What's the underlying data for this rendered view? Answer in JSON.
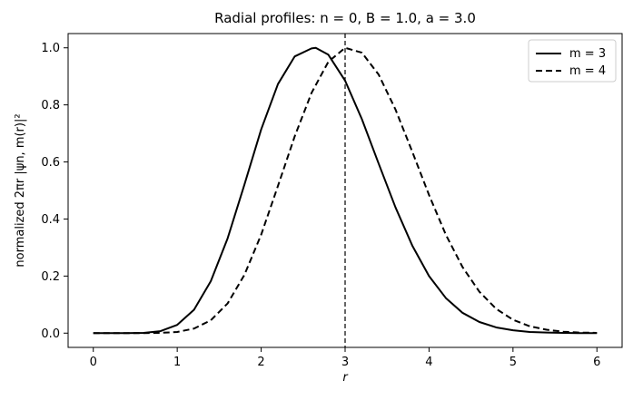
{
  "chart_data": {
    "type": "line",
    "title": "Radial profiles: n = 0, B = 1.0, a = 3.0",
    "xlabel": "r",
    "ylabel": "normalized 2πr |ψn, m(r)|²",
    "xlim": [
      -0.3,
      6.3
    ],
    "ylim": [
      -0.05,
      1.05
    ],
    "xticks": [
      0,
      1,
      2,
      3,
      4,
      5,
      6
    ],
    "yticks": [
      0.0,
      0.2,
      0.4,
      0.6,
      0.8,
      1.0
    ],
    "xtick_labels": [
      "0",
      "1",
      "2",
      "3",
      "4",
      "5",
      "6"
    ],
    "ytick_labels": [
      "0.0",
      "0.2",
      "0.4",
      "0.6",
      "0.8",
      "1.0"
    ],
    "legend_position": "top-right",
    "vline": {
      "x": 3.0,
      "style": "dashed"
    },
    "series": [
      {
        "name": "m = 3",
        "style": "solid",
        "x": [
          0.0,
          0.2,
          0.4,
          0.6,
          0.8,
          1.0,
          1.2,
          1.4,
          1.6,
          1.8,
          2.0,
          2.2,
          2.4,
          2.6,
          2.65,
          2.8,
          3.0,
          3.2,
          3.4,
          3.6,
          3.8,
          4.0,
          4.2,
          4.4,
          4.6,
          4.8,
          5.0,
          5.2,
          5.4,
          5.6,
          5.8,
          6.0
        ],
        "y": [
          0.0,
          0.0,
          0.0,
          0.001,
          0.007,
          0.029,
          0.082,
          0.182,
          0.332,
          0.52,
          0.714,
          0.873,
          0.97,
          0.998,
          1.0,
          0.976,
          0.885,
          0.75,
          0.594,
          0.441,
          0.307,
          0.2,
          0.123,
          0.071,
          0.039,
          0.02,
          0.01,
          0.004,
          0.002,
          0.001,
          0.0,
          0.0
        ]
      },
      {
        "name": "m = 4",
        "style": "dashed",
        "x": [
          0.0,
          0.2,
          0.4,
          0.6,
          0.8,
          1.0,
          1.2,
          1.4,
          1.6,
          1.8,
          2.0,
          2.2,
          2.4,
          2.6,
          2.8,
          3.0,
          3.2,
          3.4,
          3.6,
          3.8,
          4.0,
          4.2,
          4.4,
          4.6,
          4.8,
          5.0,
          5.2,
          5.4,
          5.6,
          5.8,
          6.0
        ],
        "y": [
          0.0,
          0.0,
          0.0,
          0.0,
          0.001,
          0.004,
          0.016,
          0.045,
          0.104,
          0.204,
          0.345,
          0.516,
          0.69,
          0.842,
          0.951,
          1.0,
          0.983,
          0.906,
          0.784,
          0.636,
          0.484,
          0.345,
          0.231,
          0.145,
          0.085,
          0.047,
          0.024,
          0.012,
          0.005,
          0.002,
          0.001
        ]
      }
    ]
  }
}
